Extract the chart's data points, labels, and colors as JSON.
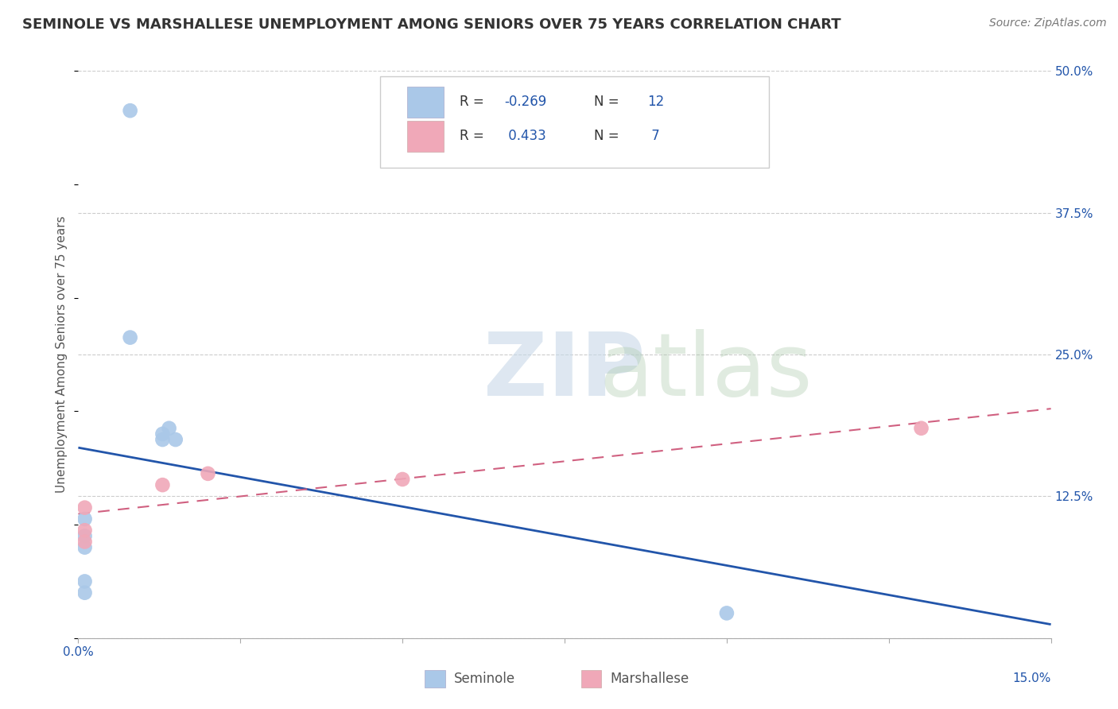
{
  "title": "SEMINOLE VS MARSHALLESE UNEMPLOYMENT AMONG SENIORS OVER 75 YEARS CORRELATION CHART",
  "source": "Source: ZipAtlas.com",
  "ylabel": "Unemployment Among Seniors over 75 years",
  "xlim": [
    0.0,
    0.15
  ],
  "ylim": [
    0.0,
    0.5
  ],
  "xticks": [
    0.0,
    0.025,
    0.05,
    0.075,
    0.1,
    0.125,
    0.15
  ],
  "yticks_right": [
    0.5,
    0.375,
    0.25,
    0.125,
    0.0
  ],
  "ytick_labels_right": [
    "50.0%",
    "37.5%",
    "25.0%",
    "12.5%",
    ""
  ],
  "seminole_x": [
    0.008,
    0.008,
    0.013,
    0.013,
    0.014,
    0.015,
    0.001,
    0.001,
    0.001,
    0.001,
    0.001,
    0.1
  ],
  "seminole_y": [
    0.465,
    0.265,
    0.175,
    0.18,
    0.185,
    0.175,
    0.105,
    0.09,
    0.08,
    0.05,
    0.04,
    0.022
  ],
  "marshallese_x": [
    0.001,
    0.001,
    0.001,
    0.013,
    0.02,
    0.05,
    0.13
  ],
  "marshallese_y": [
    0.115,
    0.095,
    0.085,
    0.135,
    0.145,
    0.14,
    0.185
  ],
  "seminole_R": -0.269,
  "seminole_N": 12,
  "marshallese_R": 0.433,
  "marshallese_N": 7,
  "seminole_color": "#aac8e8",
  "seminole_line_color": "#2255aa",
  "marshallese_color": "#f0a8b8",
  "marshallese_line_color": "#d06080",
  "background_color": "#ffffff",
  "grid_color": "#cccccc",
  "title_fontsize": 13,
  "axis_label_fontsize": 11,
  "tick_fontsize": 11,
  "source_fontsize": 10,
  "legend_label_color": "#2255aa"
}
